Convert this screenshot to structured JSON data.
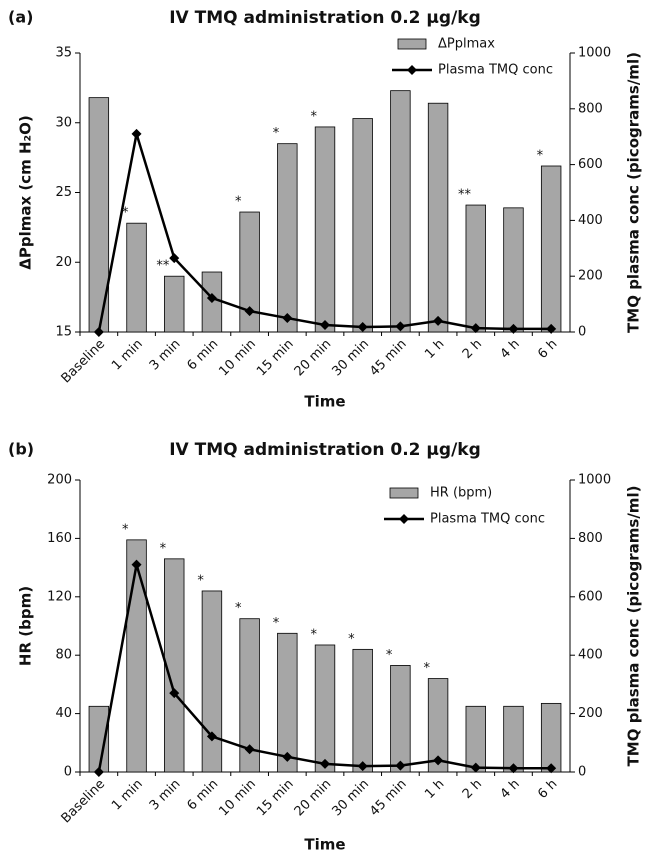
{
  "chart_data": [
    {
      "type": "bar",
      "panel_label": "(a)",
      "title": "IV TMQ administration 0.2 µg/kg",
      "categories": [
        "Baseline",
        "1 min",
        "3 min",
        "6 min",
        "10 min",
        "15 min",
        "20 min",
        "30 min",
        "45 min",
        "1 h",
        "2 h",
        "4 h",
        "6 h"
      ],
      "series": [
        {
          "name": "ΔPplmax",
          "type": "bar",
          "color": "#a6a6a6",
          "values": [
            31.8,
            22.8,
            19.0,
            19.3,
            23.6,
            28.5,
            29.7,
            30.3,
            32.3,
            31.4,
            24.1,
            23.9,
            26.9
          ]
        },
        {
          "name": "Plasma TMQ conc",
          "type": "line",
          "axis": "y2",
          "color": "#000000",
          "values": [
            0,
            710,
            265,
            122,
            75,
            50,
            25,
            18,
            20,
            40,
            14,
            11,
            11
          ]
        }
      ],
      "annotations": [
        null,
        "*",
        "**",
        null,
        "*",
        "*",
        "*",
        null,
        null,
        null,
        "**",
        null,
        "*"
      ],
      "xlabel": "Time",
      "ylabel": "ΔPplmax (cm H₂O)",
      "y2label": "TMQ plasma conc (picograms/ml)",
      "ylim": [
        15,
        35
      ],
      "yticks": [
        15,
        20,
        25,
        30,
        35
      ],
      "y2lim": [
        0,
        1000
      ],
      "y2ticks": [
        0,
        200,
        400,
        600,
        800,
        1000
      ]
    },
    {
      "type": "bar",
      "panel_label": "(b)",
      "title": "IV TMQ administration 0.2 µg/kg",
      "categories": [
        "Baseline",
        "1 min",
        "3 min",
        "6 min",
        "10 min",
        "15 min",
        "20 min",
        "30 min",
        "45 min",
        "1 h",
        "2 h",
        "4 h",
        "6 h"
      ],
      "series": [
        {
          "name": "HR (bpm)",
          "type": "bar",
          "color": "#a6a6a6",
          "values": [
            45,
            159,
            146,
            124,
            105,
            95,
            87,
            84,
            73,
            64,
            45,
            45,
            47
          ]
        },
        {
          "name": "Plasma TMQ conc",
          "type": "line",
          "axis": "y2",
          "color": "#000000",
          "values": [
            0,
            710,
            270,
            122,
            78,
            52,
            28,
            20,
            22,
            40,
            15,
            13,
            13
          ]
        }
      ],
      "annotations": [
        null,
        "*",
        "*",
        "*",
        "*",
        "*",
        "*",
        "*",
        "*",
        "*",
        null,
        null,
        null
      ],
      "xlabel": "Time",
      "ylabel": "HR (bpm)",
      "y2label": "TMQ plasma conc (picograms/ml)",
      "ylim": [
        0,
        200
      ],
      "yticks": [
        0,
        40,
        80,
        120,
        160,
        200
      ],
      "y2lim": [
        0,
        1000
      ],
      "y2ticks": [
        0,
        200,
        400,
        600,
        800,
        1000
      ]
    }
  ]
}
